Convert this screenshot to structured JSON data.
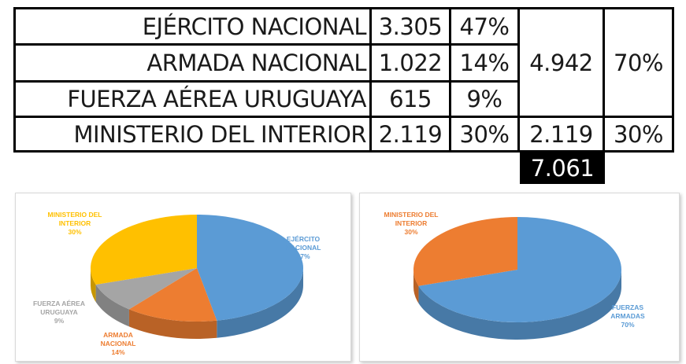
{
  "table": {
    "rows": [
      {
        "label": "EJÉRCITO NACIONAL",
        "value": "3.305",
        "pct": "47%"
      },
      {
        "label": "ARMADA NACIONAL",
        "value": "1.022",
        "pct": "14%"
      },
      {
        "label": "FUERZA AÉREA URUGUAYA",
        "value": "615",
        "pct": "9%"
      },
      {
        "label": "MINISTERIO DEL INTERIOR",
        "value": "2.119",
        "pct": "30%"
      }
    ],
    "group_total": "4.942",
    "group_pct": "70%",
    "interior_total": "2.119",
    "interior_pct": "30%",
    "grand_total": "7.061"
  },
  "chart_data": [
    {
      "type": "pie",
      "title": "",
      "slices": [
        {
          "label_lines": [
            "EJÉRCITO",
            "NACIONAL"
          ],
          "pct_label": "47%",
          "value": 47,
          "color": "#5b9bd5"
        },
        {
          "label_lines": [
            "ARMADA",
            "NACIONAL"
          ],
          "pct_label": "14%",
          "value": 14,
          "color": "#ed7d31"
        },
        {
          "label_lines": [
            "FUERZA AÉREA",
            "URUGUAYA"
          ],
          "pct_label": "9%",
          "value": 9,
          "color": "#a5a5a5"
        },
        {
          "label_lines": [
            "MINISTERIO DEL",
            "INTERIOR"
          ],
          "pct_label": "30%",
          "value": 30,
          "color": "#ffc000"
        }
      ],
      "style": "3d"
    },
    {
      "type": "pie",
      "title": "",
      "slices": [
        {
          "label_lines": [
            "FUERZAS",
            "ARMADAS"
          ],
          "pct_label": "70%",
          "value": 70,
          "color": "#5b9bd5"
        },
        {
          "label_lines": [
            "MINISTERIO DEL",
            "INTERIOR"
          ],
          "pct_label": "30%",
          "value": 30,
          "color": "#ed7d31"
        }
      ],
      "style": "3d"
    }
  ]
}
